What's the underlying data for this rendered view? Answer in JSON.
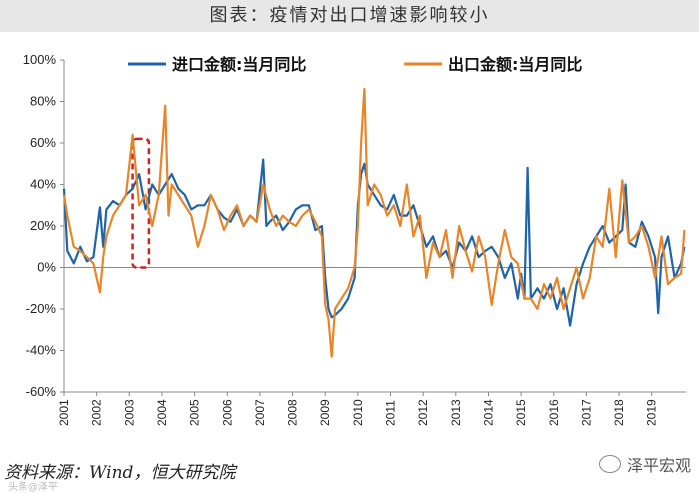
{
  "header": {
    "title": "图表：疫情对出口增速影响较小"
  },
  "footer": {
    "source": "资料来源：Wind，恒大研究院",
    "watermark": "泽平宏观",
    "watermark_small": "头条@泽平"
  },
  "colors": {
    "import": "#1f63a8",
    "export": "#e8852a",
    "highlight": "#cc2222",
    "grid": "#d9d9d9"
  },
  "chart_data": {
    "type": "line",
    "title": "",
    "xlabel": "",
    "ylabel": "",
    "ylim": [
      -60,
      100
    ],
    "yticks": [
      -60,
      -40,
      -20,
      0,
      20,
      40,
      60,
      80,
      100
    ],
    "ytick_labels": [
      "-60%",
      "-40%",
      "-20%",
      "0%",
      "20%",
      "40%",
      "60%",
      "80%",
      "100%"
    ],
    "xticks": [
      "2001",
      "2002",
      "2003",
      "2004",
      "2005",
      "2006",
      "2007",
      "2008",
      "2009",
      "2010",
      "2011",
      "2012",
      "2013",
      "2014",
      "2015",
      "2016",
      "2017",
      "2018",
      "2019"
    ],
    "xlim": [
      2001.0,
      2020.05
    ],
    "legend_position": "top",
    "grid": false,
    "series": [
      {
        "name": "进口金额:当月同比",
        "color": "#1f63a8",
        "x": [
          2001.0,
          2001.1,
          2001.3,
          2001.5,
          2001.7,
          2001.9,
          2002.1,
          2002.2,
          2002.3,
          2002.5,
          2002.7,
          2002.9,
          2003.1,
          2003.3,
          2003.5,
          2003.7,
          2003.9,
          2004.1,
          2004.3,
          2004.5,
          2004.7,
          2004.9,
          2005.1,
          2005.3,
          2005.5,
          2005.7,
          2005.9,
          2006.1,
          2006.3,
          2006.5,
          2006.7,
          2006.9,
          2007.1,
          2007.2,
          2007.3,
          2007.5,
          2007.7,
          2007.9,
          2008.1,
          2008.3,
          2008.5,
          2008.7,
          2008.9,
          2009.0,
          2009.1,
          2009.2,
          2009.3,
          2009.5,
          2009.7,
          2009.9,
          2010.0,
          2010.1,
          2010.2,
          2010.3,
          2010.5,
          2010.7,
          2010.9,
          2011.1,
          2011.3,
          2011.5,
          2011.7,
          2011.9,
          2012.1,
          2012.3,
          2012.5,
          2012.7,
          2012.9,
          2013.1,
          2013.3,
          2013.5,
          2013.7,
          2013.9,
          2014.1,
          2014.3,
          2014.5,
          2014.7,
          2014.9,
          2015.0,
          2015.1,
          2015.2,
          2015.3,
          2015.5,
          2015.7,
          2015.9,
          2016.1,
          2016.3,
          2016.5,
          2016.7,
          2016.9,
          2017.1,
          2017.3,
          2017.5,
          2017.7,
          2017.9,
          2018.1,
          2018.2,
          2018.3,
          2018.5,
          2018.7,
          2018.9,
          2019.1,
          2019.2,
          2019.3,
          2019.5,
          2019.7,
          2019.9,
          2020.0
        ],
        "values": [
          38,
          8,
          2,
          10,
          3,
          5,
          29,
          10,
          28,
          32,
          30,
          35,
          38,
          45,
          28,
          40,
          35,
          40,
          45,
          38,
          35,
          28,
          30,
          30,
          35,
          28,
          24,
          22,
          28,
          20,
          25,
          22,
          52,
          20,
          22,
          25,
          18,
          22,
          28,
          30,
          30,
          18,
          20,
          -5,
          -20,
          -24,
          -23,
          -20,
          -15,
          -5,
          30,
          45,
          50,
          40,
          35,
          30,
          28,
          35,
          25,
          25,
          30,
          20,
          10,
          15,
          5,
          8,
          0,
          12,
          8,
          15,
          5,
          8,
          10,
          5,
          -5,
          2,
          -15,
          -3,
          -15,
          48,
          -15,
          -10,
          -15,
          -8,
          -20,
          -10,
          -28,
          -8,
          2,
          10,
          15,
          20,
          12,
          15,
          18,
          40,
          12,
          10,
          22,
          15,
          5,
          -22,
          5,
          15,
          -5,
          2,
          10
        ]
      },
      {
        "name": "出口金额:当月同比",
        "color": "#e8852a",
        "x": [
          2001.0,
          2001.1,
          2001.3,
          2001.5,
          2001.7,
          2001.9,
          2002.1,
          2002.2,
          2002.3,
          2002.5,
          2002.7,
          2002.9,
          2003.1,
          2003.3,
          2003.5,
          2003.7,
          2003.9,
          2004.1,
          2004.2,
          2004.3,
          2004.5,
          2004.7,
          2004.9,
          2005.1,
          2005.3,
          2005.5,
          2005.7,
          2005.9,
          2006.1,
          2006.3,
          2006.5,
          2006.7,
          2006.9,
          2007.1,
          2007.3,
          2007.5,
          2007.7,
          2007.9,
          2008.1,
          2008.3,
          2008.5,
          2008.7,
          2008.9,
          2009.0,
          2009.1,
          2009.2,
          2009.3,
          2009.5,
          2009.7,
          2009.9,
          2010.0,
          2010.1,
          2010.2,
          2010.3,
          2010.5,
          2010.7,
          2010.9,
          2011.1,
          2011.3,
          2011.5,
          2011.7,
          2011.9,
          2012.1,
          2012.3,
          2012.5,
          2012.7,
          2012.9,
          2013.1,
          2013.3,
          2013.5,
          2013.7,
          2013.9,
          2014.1,
          2014.3,
          2014.5,
          2014.7,
          2014.9,
          2015.1,
          2015.3,
          2015.5,
          2015.7,
          2015.9,
          2016.1,
          2016.3,
          2016.5,
          2016.7,
          2016.9,
          2017.1,
          2017.3,
          2017.5,
          2017.7,
          2017.9,
          2018.1,
          2018.3,
          2018.5,
          2018.7,
          2018.9,
          2019.1,
          2019.3,
          2019.5,
          2019.7,
          2019.9,
          2020.0
        ],
        "values": [
          35,
          25,
          10,
          8,
          5,
          2,
          -12,
          5,
          15,
          25,
          30,
          35,
          64,
          30,
          35,
          20,
          35,
          78,
          25,
          40,
          35,
          30,
          25,
          10,
          20,
          35,
          28,
          18,
          25,
          30,
          20,
          25,
          22,
          40,
          28,
          20,
          25,
          22,
          20,
          25,
          28,
          22,
          15,
          -18,
          -25,
          -43,
          -20,
          -15,
          -10,
          0,
          20,
          60,
          86,
          30,
          40,
          35,
          25,
          30,
          20,
          40,
          15,
          25,
          -5,
          12,
          5,
          18,
          -5,
          20,
          8,
          -2,
          15,
          5,
          -18,
          2,
          18,
          5,
          2,
          -15,
          -15,
          -20,
          -8,
          -15,
          -5,
          -20,
          -10,
          0,
          -15,
          -5,
          15,
          10,
          38,
          5,
          42,
          12,
          15,
          20,
          10,
          -5,
          15,
          -8,
          -5,
          -3,
          18
        ]
      }
    ],
    "annotations": [
      {
        "type": "dashed-box",
        "x0": 2003.1,
        "x1": 2003.6,
        "y0": 0,
        "y1": 62
      }
    ]
  }
}
